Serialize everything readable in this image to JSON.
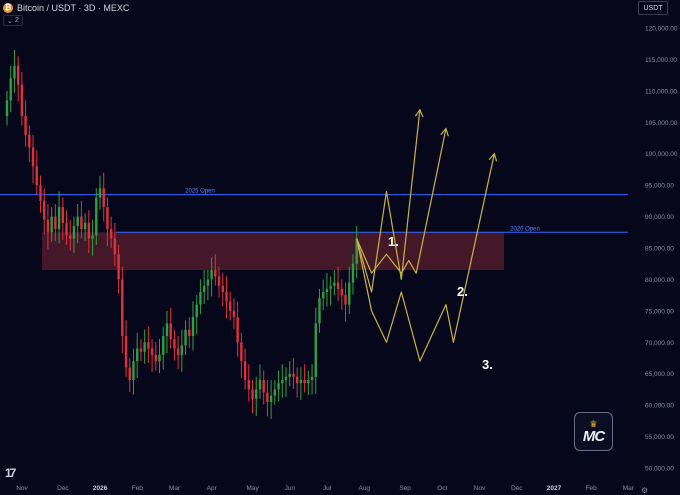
{
  "header": {
    "coin_glyph": "₿",
    "symbol_title": "Bitcoin / USDT · 3D · MEXC",
    "indicator_count": "2",
    "currency_label": "USDT"
  },
  "brand": {
    "tv_logo_text": "17",
    "mc_logo_text": "MC",
    "mc_crown_icon": "crown-icon"
  },
  "colors": {
    "background": "#07071c",
    "candle_up": "#2ea043",
    "candle_down": "#e0313b",
    "level_line": "#2f6bff",
    "zone_fill": "#5a1f2c",
    "projection": "#c9b43a",
    "axis_text": "#8a8fa0"
  },
  "chart_data": {
    "type": "candlestick",
    "y_axis": {
      "range": [
        48000,
        125000
      ],
      "ticks": [
        120000,
        115000,
        110000,
        105000,
        100000,
        95000,
        90000,
        85000,
        80000,
        75000,
        70000,
        65000,
        60000,
        55000,
        50000
      ],
      "tick_labels": [
        "120,000.00",
        "115,000.00",
        "110,000.00",
        "105,000.00",
        "100,000.00",
        "95,000.00",
        "90,000.00",
        "85,000.00",
        "80,000.00",
        "75,000.00",
        "70,000.00",
        "65,000.00",
        "60,000.00",
        "55,000.00",
        "50,000.00"
      ]
    },
    "x_axis": {
      "tick_labels": [
        "Nov",
        "Dec",
        "2026",
        "Feb",
        "Mar",
        "Apr",
        "May",
        "Jun",
        "Jul",
        "Aug",
        "Sep",
        "Oct",
        "Nov",
        "Dec",
        "2027",
        "Feb",
        "Mar"
      ],
      "tick_index": [
        0,
        11,
        21,
        31,
        41,
        51,
        62,
        72,
        82,
        92,
        103,
        113,
        123,
        133,
        143,
        153,
        163
      ],
      "bold_labels": [
        "2026",
        "2027"
      ]
    },
    "closes": [
      108500,
      112000,
      114000,
      111000,
      106000,
      103000,
      101000,
      98000,
      95000,
      92500,
      89500,
      87500,
      90000,
      88000,
      91500,
      89000,
      87000,
      86500,
      88500,
      90000,
      88000,
      89000,
      86500,
      87000,
      93000,
      94500,
      91500,
      88000,
      86500,
      84000,
      80000,
      71000,
      66000,
      64000,
      67000,
      69000,
      68500,
      70000,
      69000,
      68000,
      67000,
      68000,
      71000,
      73000,
      70500,
      69000,
      68000,
      69500,
      72000,
      71000,
      74000,
      76000,
      78000,
      79000,
      80000,
      81500,
      80500,
      79000,
      78000,
      76500,
      75000,
      74000,
      70000,
      67000,
      64000,
      62500,
      61000,
      62500,
      64000,
      62000,
      60500,
      61500,
      62500,
      63500,
      64000,
      64500,
      65000,
      64500,
      63500,
      64000,
      63500,
      64000,
      64500,
      73000,
      77000,
      78000,
      78500,
      79000,
      79500,
      78500,
      77500,
      76000,
      79500,
      82500,
      86500
    ],
    "opens": [
      106000,
      108500,
      112000,
      114000,
      111000,
      106000,
      103000,
      101000,
      98000,
      95000,
      92500,
      89500,
      87500,
      90000,
      88000,
      91500,
      89000,
      87000,
      86500,
      88500,
      90000,
      88000,
      89000,
      86500,
      87000,
      93000,
      94500,
      91500,
      88000,
      86500,
      84000,
      80000,
      71000,
      66000,
      64000,
      67000,
      69000,
      68500,
      70000,
      69000,
      68000,
      67000,
      68000,
      71000,
      73000,
      70500,
      69000,
      68000,
      69500,
      72000,
      71000,
      74000,
      76000,
      78000,
      79000,
      80000,
      81500,
      80500,
      79000,
      78000,
      76500,
      75000,
      74000,
      70000,
      67000,
      64000,
      62500,
      61000,
      62500,
      64000,
      62000,
      60500,
      61500,
      62500,
      63500,
      64000,
      64500,
      65000,
      64500,
      63500,
      64000,
      63500,
      64000,
      64500,
      73000,
      77000,
      78000,
      78500,
      79000,
      79500,
      78500,
      77500,
      76000,
      79500,
      82500
    ],
    "levels": [
      {
        "label": "2025 Open",
        "value": 93500
      },
      {
        "label": "2026 Open",
        "value": 87500
      }
    ],
    "zone": {
      "low": 81500,
      "high": 87500
    },
    "scenarios": [
      {
        "label": "1.",
        "points": [
          [
            94,
            86500
          ],
          [
            98,
            78000
          ],
          [
            102,
            94000
          ],
          [
            106,
            80000
          ],
          [
            111,
            107000
          ]
        ]
      },
      {
        "label": "2.",
        "points": [
          [
            94,
            86500
          ],
          [
            98,
            81000
          ],
          [
            102,
            84000
          ],
          [
            106,
            81000
          ],
          [
            108,
            83000
          ],
          [
            110,
            81000
          ],
          [
            118,
            104000
          ]
        ]
      },
      {
        "label": "3.",
        "points": [
          [
            94,
            86500
          ],
          [
            98,
            75000
          ],
          [
            102,
            70000
          ],
          [
            106,
            78000
          ],
          [
            111,
            67000
          ],
          [
            118,
            76000
          ],
          [
            120,
            70000
          ],
          [
            131,
            100000
          ]
        ]
      }
    ]
  }
}
